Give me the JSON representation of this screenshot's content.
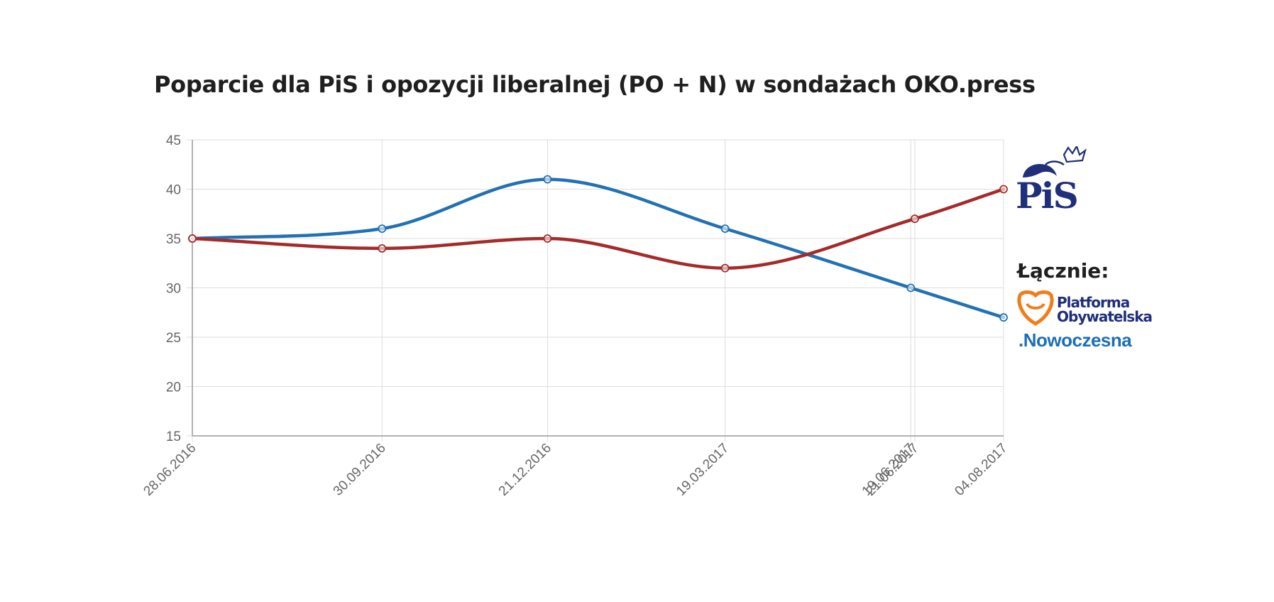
{
  "title": "Poparcie dla PiS i opozycji liberalnej (PO + N) w sondażach OKO.press",
  "legend": {
    "pis_logo_text": "PiS",
    "combined_label": "Łącznie:",
    "po_line1": "Platforma",
    "po_line2": "Obywatelska",
    "nowoczesna": ".Nowoczesna"
  },
  "colors": {
    "pis": "#a52a2a",
    "po_n": "#2271b3",
    "grid": "#dddddd",
    "axis": "#999999"
  },
  "chart_data": {
    "type": "line",
    "title": "Poparcie dla PiS i opozycji liberalnej (PO + N) w sondażach OKO.press",
    "xlabel": "",
    "ylabel": "",
    "ylim": [
      15,
      45
    ],
    "yticks": [
      45,
      40,
      35,
      30,
      25,
      20,
      15
    ],
    "x": [
      "28.06.2016",
      "30.09.2016",
      "21.12.2016",
      "19.03.2017",
      "19.06.2017",
      "21.06.2017",
      "04.08.2017"
    ],
    "grid": true,
    "series": [
      {
        "color": "#2271b3",
        "points": [
          {
            "x": "28.06.2016",
            "y": 35
          },
          {
            "x": "30.09.2016",
            "y": 36
          },
          {
            "x": "21.12.2016",
            "y": 41
          },
          {
            "x": "19.03.2017",
            "y": 36
          },
          {
            "x": "19.06.2017",
            "y": 30
          },
          {
            "x": "04.08.2017",
            "y": 27
          }
        ]
      },
      {
        "color": "#a52a2a",
        "points": [
          {
            "x": "28.06.2016",
            "y": 35
          },
          {
            "x": "30.09.2016",
            "y": 34
          },
          {
            "x": "21.12.2016",
            "y": 35
          },
          {
            "x": "19.03.2017",
            "y": 32
          },
          {
            "x": "21.06.2017",
            "y": 37
          },
          {
            "x": "04.08.2017",
            "y": 40
          }
        ]
      }
    ]
  }
}
